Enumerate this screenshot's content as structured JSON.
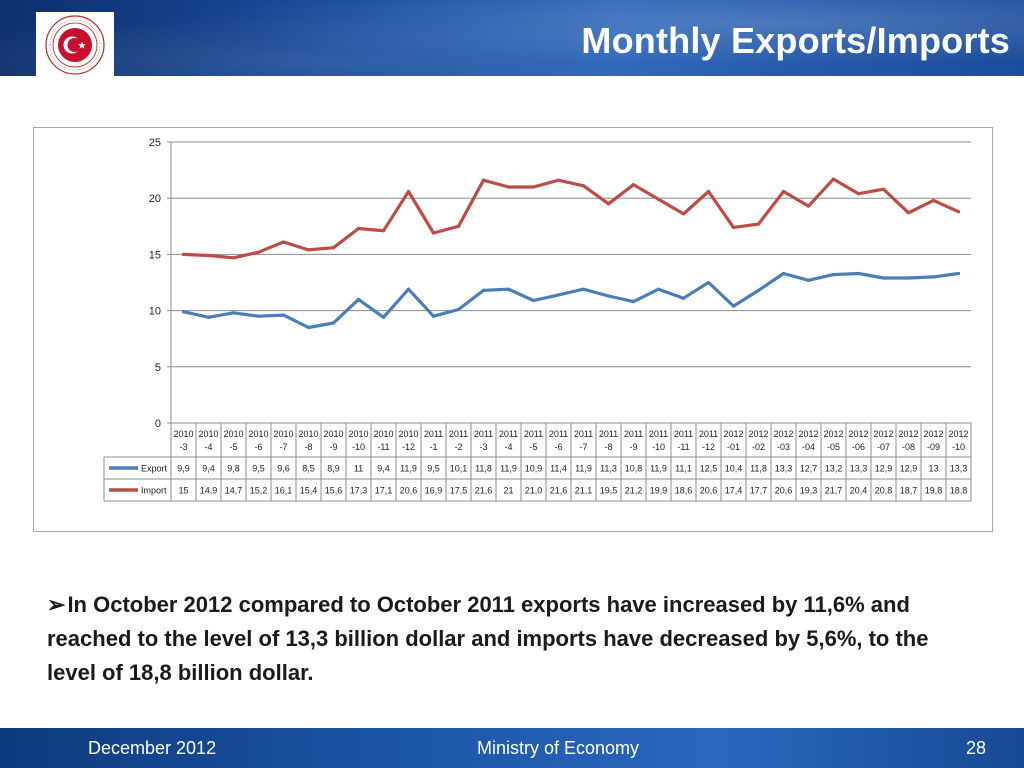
{
  "header": {
    "title": "Monthly Exports/Imports",
    "logo_text": "REPUBLIC OF TURKEY MINISTRY OF ECONOMY"
  },
  "chart_data": {
    "type": "line",
    "title": "",
    "xlabel": "",
    "ylabel": "",
    "ylim": [
      0,
      25
    ],
    "yticks": [
      "0",
      "5",
      "10",
      "15",
      "20",
      "25"
    ],
    "grid": true,
    "categories": [
      [
        "2010",
        "-3"
      ],
      [
        "2010",
        "-4"
      ],
      [
        "2010",
        "-5"
      ],
      [
        "2010",
        "-6"
      ],
      [
        "2010",
        "-7"
      ],
      [
        "2010",
        "-8"
      ],
      [
        "2010",
        "-9"
      ],
      [
        "2010",
        "-10"
      ],
      [
        "2010",
        "-11"
      ],
      [
        "2010",
        "-12"
      ],
      [
        "2011",
        "-1"
      ],
      [
        "2011",
        "-2"
      ],
      [
        "2011",
        "-3"
      ],
      [
        "2011",
        "-4"
      ],
      [
        "2011",
        "-5"
      ],
      [
        "2011",
        "-6"
      ],
      [
        "2011",
        "-7"
      ],
      [
        "2011",
        "-8"
      ],
      [
        "2011",
        "-9"
      ],
      [
        "2011",
        "-10"
      ],
      [
        "2011",
        "-11"
      ],
      [
        "2011",
        "-12"
      ],
      [
        "2012",
        "-01"
      ],
      [
        "2012",
        "-02"
      ],
      [
        "2012",
        "-03"
      ],
      [
        "2012",
        "-04"
      ],
      [
        "2012",
        "-05"
      ],
      [
        "2012",
        "-06"
      ],
      [
        "2012",
        "-07"
      ],
      [
        "2012",
        "-08"
      ],
      [
        "2012",
        "-09"
      ],
      [
        "2012",
        "-10"
      ]
    ],
    "series": [
      {
        "name": "Export",
        "color": "#4a7ebb",
        "values": [
          9.9,
          9.4,
          9.8,
          9.5,
          9.6,
          8.5,
          8.9,
          11,
          9.4,
          11.9,
          9.5,
          10.1,
          11.8,
          11.9,
          10.9,
          11.4,
          11.9,
          11.3,
          10.8,
          11.9,
          11.1,
          12.5,
          10.4,
          11.8,
          13.3,
          12.7,
          13.2,
          13.3,
          12.9,
          12.9,
          13,
          13.3
        ],
        "labels": [
          "9,9",
          "9,4",
          "9,8",
          "9,5",
          "9,6",
          "8,5",
          "8,9",
          "11",
          "9,4",
          "11,9",
          "9,5",
          "10,1",
          "11,8",
          "11,9",
          "10,9",
          "11,4",
          "11,9",
          "11,3",
          "10,8",
          "11,9",
          "11,1",
          "12,5",
          "10,4",
          "11,8",
          "13,3",
          "12,7",
          "13,2",
          "13,3",
          "12,9",
          "12,9",
          "13",
          "13,3"
        ]
      },
      {
        "name": "Import",
        "color": "#be4b48",
        "values": [
          15,
          14.9,
          14.7,
          15.2,
          16.1,
          15.4,
          15.6,
          17.3,
          17.1,
          20.6,
          16.9,
          17.5,
          21.6,
          21,
          21.0,
          21.6,
          21.1,
          19.5,
          21.2,
          19.9,
          18.6,
          20.6,
          17.4,
          17.7,
          20.6,
          19.3,
          21.7,
          20.4,
          20.8,
          18.7,
          19.8,
          18.8
        ],
        "labels": [
          "15",
          "14,9",
          "14,7",
          "15,2",
          "16,1",
          "15,4",
          "15,6",
          "17,3",
          "17,1",
          "20,6",
          "16,9",
          "17,5",
          "21,6",
          "21",
          "21,0",
          "21,6",
          "21,1",
          "19,5",
          "21,2",
          "19,9",
          "18,6",
          "20,6",
          "17,4",
          "17,7",
          "20,6",
          "19,3",
          "21,7",
          "20,4",
          "20,8",
          "18,7",
          "19,8",
          "18,8"
        ]
      }
    ],
    "legend": "data-table-bottom"
  },
  "note": {
    "bullet": "➢",
    "text": "In October 2012 compared to October 2011 exports  have increased by 11,6% and reached to the level of 13,3 billion dollar and imports have decreased by 5,6%, to the level of 18,8 billion dollar."
  },
  "footer": {
    "date": "December  2012",
    "org": "Ministry of Economy",
    "page": "28"
  }
}
